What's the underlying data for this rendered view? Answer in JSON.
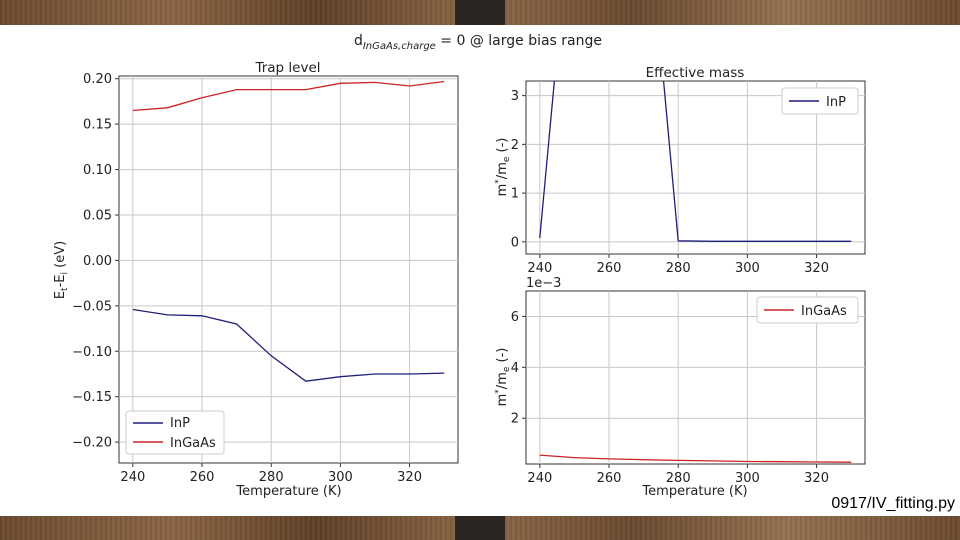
{
  "slide": {
    "main_title": "d_InGaAs,charge = 0 @ large bias range",
    "footer": "0917/IV_fitting.py"
  },
  "chart_data": [
    {
      "type": "line",
      "title": "Trap level",
      "xlabel": "Temperature (K)",
      "ylabel": "Et-Ei (eV)",
      "xlim": [
        236,
        334
      ],
      "ylim": [
        -0.223,
        0.203
      ],
      "xticks": [
        240,
        260,
        280,
        300,
        320
      ],
      "yticks": [
        -0.2,
        -0.15,
        -0.1,
        -0.05,
        0.0,
        0.05,
        0.1,
        0.15,
        0.2
      ],
      "ytick_labels": [
        "−0.20",
        "−0.15",
        "−0.10",
        "−0.05",
        "0.00",
        "0.05",
        "0.10",
        "0.15",
        "0.20"
      ],
      "grid": true,
      "legend_position": "lower-left",
      "x": [
        240,
        250,
        260,
        270,
        280,
        290,
        300,
        310,
        320,
        330
      ],
      "series": [
        {
          "name": "InP",
          "color": "#1f1f7a",
          "values": [
            -0.054,
            -0.06,
            -0.061,
            -0.07,
            -0.105,
            -0.133,
            -0.128,
            -0.125,
            -0.125,
            -0.124
          ]
        },
        {
          "name": "InGaAs",
          "color": "#cc2222",
          "values": [
            0.165,
            0.168,
            0.179,
            0.188,
            0.188,
            0.188,
            0.195,
            0.196,
            0.192,
            0.197
          ]
        }
      ]
    },
    {
      "type": "line",
      "title": "Effective mass",
      "xlabel": "",
      "ylabel": "m*/me (-)",
      "xlim": [
        236,
        334
      ],
      "ylim": [
        -0.25,
        3.3
      ],
      "xticks": [
        240,
        260,
        280,
        300,
        320
      ],
      "yticks": [
        0,
        1,
        2,
        3
      ],
      "ytick_labels": [
        "0",
        "1",
        "2",
        "3"
      ],
      "grid": true,
      "legend_position": "top-right",
      "x": [
        240,
        245,
        275,
        280,
        290,
        300,
        310,
        320,
        330
      ],
      "series": [
        {
          "name": "InP",
          "color": "#1f1f7a",
          "values": [
            0.08,
            3.9,
            3.9,
            0.02,
            0.01,
            0.01,
            0.01,
            0.01,
            0.01
          ]
        }
      ]
    },
    {
      "type": "line",
      "title": "",
      "xlabel": "Temperature (K)",
      "ylabel": "m*/me (-)",
      "scale_label": "1e−3",
      "xlim": [
        236,
        334
      ],
      "ylim": [
        0.2,
        7.0
      ],
      "xticks": [
        240,
        260,
        280,
        300,
        320
      ],
      "yticks": [
        2,
        4,
        6
      ],
      "ytick_labels": [
        "2",
        "4",
        "6"
      ],
      "grid": true,
      "legend_position": "top-right",
      "x": [
        240,
        250,
        260,
        270,
        280,
        290,
        300,
        310,
        320,
        330
      ],
      "series": [
        {
          "name": "InGaAs",
          "color": "#cc2222",
          "values": [
            0.55,
            0.45,
            0.4,
            0.37,
            0.34,
            0.32,
            0.3,
            0.29,
            0.28,
            0.27
          ]
        }
      ]
    }
  ]
}
